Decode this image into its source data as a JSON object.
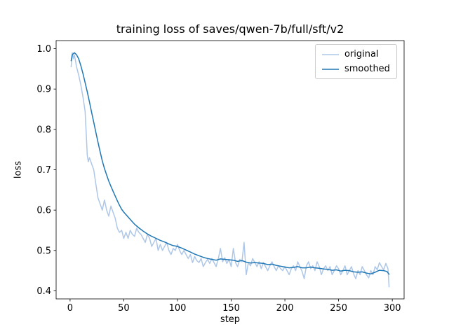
{
  "chart_data": {
    "type": "line",
    "title": "training loss of saves/qwen-7b/full/sft/v2",
    "xlabel": "step",
    "ylabel": "loss",
    "xlim": [
      -13,
      311
    ],
    "ylim": [
      0.38,
      1.02
    ],
    "xticks": [
      0,
      50,
      100,
      150,
      200,
      250,
      300
    ],
    "yticks": [
      0.4,
      0.5,
      0.6,
      0.7,
      0.8,
      0.9,
      1.0
    ],
    "grid": false,
    "legend_position": "upper right",
    "series": [
      {
        "name": "original",
        "color": "#aec7e8",
        "points": [
          [
            1,
            0.955
          ],
          [
            2,
            0.99
          ],
          [
            3,
            0.975
          ],
          [
            4,
            0.985
          ],
          [
            5,
            0.97
          ],
          [
            6,
            0.955
          ],
          [
            8,
            0.935
          ],
          [
            10,
            0.91
          ],
          [
            12,
            0.88
          ],
          [
            14,
            0.845
          ],
          [
            15,
            0.79
          ],
          [
            16,
            0.735
          ],
          [
            17,
            0.72
          ],
          [
            18,
            0.73
          ],
          [
            20,
            0.715
          ],
          [
            22,
            0.7
          ],
          [
            24,
            0.665
          ],
          [
            26,
            0.63
          ],
          [
            28,
            0.615
          ],
          [
            30,
            0.6
          ],
          [
            32,
            0.625
          ],
          [
            34,
            0.6
          ],
          [
            36,
            0.585
          ],
          [
            38,
            0.61
          ],
          [
            40,
            0.595
          ],
          [
            42,
            0.58
          ],
          [
            44,
            0.555
          ],
          [
            46,
            0.545
          ],
          [
            48,
            0.55
          ],
          [
            50,
            0.53
          ],
          [
            52,
            0.545
          ],
          [
            54,
            0.53
          ],
          [
            56,
            0.55
          ],
          [
            58,
            0.54
          ],
          [
            60,
            0.535
          ],
          [
            62,
            0.555
          ],
          [
            64,
            0.545
          ],
          [
            66,
            0.54
          ],
          [
            68,
            0.53
          ],
          [
            70,
            0.52
          ],
          [
            72,
            0.54
          ],
          [
            74,
            0.53
          ],
          [
            76,
            0.51
          ],
          [
            78,
            0.52
          ],
          [
            80,
            0.53
          ],
          [
            82,
            0.5
          ],
          [
            84,
            0.515
          ],
          [
            86,
            0.5
          ],
          [
            88,
            0.51
          ],
          [
            90,
            0.52
          ],
          [
            92,
            0.5
          ],
          [
            94,
            0.49
          ],
          [
            96,
            0.505
          ],
          [
            98,
            0.5
          ],
          [
            100,
            0.515
          ],
          [
            102,
            0.5
          ],
          [
            104,
            0.49
          ],
          [
            106,
            0.5
          ],
          [
            108,
            0.49
          ],
          [
            110,
            0.48
          ],
          [
            112,
            0.49
          ],
          [
            114,
            0.47
          ],
          [
            116,
            0.485
          ],
          [
            118,
            0.475
          ],
          [
            120,
            0.47
          ],
          [
            122,
            0.48
          ],
          [
            124,
            0.46
          ],
          [
            126,
            0.47
          ],
          [
            128,
            0.478
          ],
          [
            130,
            0.468
          ],
          [
            132,
            0.48
          ],
          [
            134,
            0.47
          ],
          [
            136,
            0.46
          ],
          [
            138,
            0.48
          ],
          [
            140,
            0.505
          ],
          [
            142,
            0.472
          ],
          [
            144,
            0.482
          ],
          [
            146,
            0.468
          ],
          [
            148,
            0.478
          ],
          [
            150,
            0.46
          ],
          [
            152,
            0.505
          ],
          [
            154,
            0.47
          ],
          [
            156,
            0.46
          ],
          [
            158,
            0.478
          ],
          [
            160,
            0.472
          ],
          [
            162,
            0.52
          ],
          [
            164,
            0.44
          ],
          [
            166,
            0.47
          ],
          [
            168,
            0.462
          ],
          [
            170,
            0.48
          ],
          [
            172,
            0.47
          ],
          [
            174,
            0.46
          ],
          [
            176,
            0.472
          ],
          [
            178,
            0.455
          ],
          [
            180,
            0.47
          ],
          [
            182,
            0.46
          ],
          [
            184,
            0.45
          ],
          [
            186,
            0.462
          ],
          [
            188,
            0.472
          ],
          [
            190,
            0.46
          ],
          [
            192,
            0.45
          ],
          [
            194,
            0.462
          ],
          [
            196,
            0.455
          ],
          [
            198,
            0.45
          ],
          [
            200,
            0.46
          ],
          [
            202,
            0.45
          ],
          [
            204,
            0.44
          ],
          [
            206,
            0.455
          ],
          [
            208,
            0.462
          ],
          [
            210,
            0.45
          ],
          [
            212,
            0.472
          ],
          [
            214,
            0.46
          ],
          [
            216,
            0.448
          ],
          [
            218,
            0.43
          ],
          [
            220,
            0.462
          ],
          [
            222,
            0.472
          ],
          [
            224,
            0.455
          ],
          [
            226,
            0.462
          ],
          [
            228,
            0.45
          ],
          [
            230,
            0.472
          ],
          [
            232,
            0.46
          ],
          [
            234,
            0.44
          ],
          [
            236,
            0.455
          ],
          [
            238,
            0.462
          ],
          [
            240,
            0.45
          ],
          [
            242,
            0.46
          ],
          [
            244,
            0.44
          ],
          [
            246,
            0.45
          ],
          [
            248,
            0.462
          ],
          [
            250,
            0.455
          ],
          [
            252,
            0.44
          ],
          [
            254,
            0.45
          ],
          [
            256,
            0.462
          ],
          [
            258,
            0.44
          ],
          [
            260,
            0.45
          ],
          [
            262,
            0.46
          ],
          [
            264,
            0.442
          ],
          [
            266,
            0.43
          ],
          [
            268,
            0.45
          ],
          [
            270,
            0.44
          ],
          [
            272,
            0.46
          ],
          [
            274,
            0.45
          ],
          [
            276,
            0.44
          ],
          [
            278,
            0.432
          ],
          [
            280,
            0.45
          ],
          [
            282,
            0.44
          ],
          [
            284,
            0.46
          ],
          [
            286,
            0.452
          ],
          [
            288,
            0.47
          ],
          [
            290,
            0.46
          ],
          [
            292,
            0.452
          ],
          [
            294,
            0.468
          ],
          [
            296,
            0.455
          ],
          [
            297,
            0.41
          ]
        ]
      },
      {
        "name": "smoothed",
        "color": "#1f77b4",
        "points": [
          [
            1,
            0.97
          ],
          [
            2,
            0.985
          ],
          [
            4,
            0.99
          ],
          [
            6,
            0.985
          ],
          [
            8,
            0.975
          ],
          [
            10,
            0.958
          ],
          [
            12,
            0.938
          ],
          [
            14,
            0.916
          ],
          [
            16,
            0.893
          ],
          [
            18,
            0.868
          ],
          [
            20,
            0.843
          ],
          [
            22,
            0.818
          ],
          [
            24,
            0.793
          ],
          [
            26,
            0.768
          ],
          [
            28,
            0.744
          ],
          [
            30,
            0.722
          ],
          [
            32,
            0.703
          ],
          [
            34,
            0.687
          ],
          [
            36,
            0.672
          ],
          [
            38,
            0.659
          ],
          [
            40,
            0.647
          ],
          [
            42,
            0.635
          ],
          [
            44,
            0.623
          ],
          [
            46,
            0.612
          ],
          [
            48,
            0.602
          ],
          [
            50,
            0.595
          ],
          [
            52,
            0.589
          ],
          [
            54,
            0.583
          ],
          [
            56,
            0.577
          ],
          [
            58,
            0.571
          ],
          [
            60,
            0.565
          ],
          [
            64,
            0.556
          ],
          [
            68,
            0.548
          ],
          [
            72,
            0.541
          ],
          [
            76,
            0.535
          ],
          [
            80,
            0.53
          ],
          [
            84,
            0.525
          ],
          [
            88,
            0.521
          ],
          [
            92,
            0.516
          ],
          [
            96,
            0.512
          ],
          [
            100,
            0.51
          ],
          [
            104,
            0.506
          ],
          [
            108,
            0.501
          ],
          [
            112,
            0.496
          ],
          [
            116,
            0.491
          ],
          [
            120,
            0.487
          ],
          [
            124,
            0.483
          ],
          [
            128,
            0.48
          ],
          [
            132,
            0.478
          ],
          [
            136,
            0.476
          ],
          [
            140,
            0.479
          ],
          [
            144,
            0.478
          ],
          [
            148,
            0.477
          ],
          [
            152,
            0.476
          ],
          [
            156,
            0.473
          ],
          [
            160,
            0.475
          ],
          [
            164,
            0.471
          ],
          [
            168,
            0.469
          ],
          [
            172,
            0.47
          ],
          [
            176,
            0.469
          ],
          [
            180,
            0.468
          ],
          [
            184,
            0.465
          ],
          [
            188,
            0.466
          ],
          [
            192,
            0.463
          ],
          [
            196,
            0.461
          ],
          [
            200,
            0.459
          ],
          [
            204,
            0.457
          ],
          [
            208,
            0.458
          ],
          [
            212,
            0.46
          ],
          [
            216,
            0.457
          ],
          [
            220,
            0.457
          ],
          [
            224,
            0.459
          ],
          [
            228,
            0.457
          ],
          [
            232,
            0.456
          ],
          [
            236,
            0.454
          ],
          [
            240,
            0.453
          ],
          [
            244,
            0.451
          ],
          [
            248,
            0.452
          ],
          [
            252,
            0.449
          ],
          [
            256,
            0.451
          ],
          [
            260,
            0.45
          ],
          [
            264,
            0.447
          ],
          [
            268,
            0.446
          ],
          [
            272,
            0.447
          ],
          [
            276,
            0.444
          ],
          [
            280,
            0.442
          ],
          [
            284,
            0.446
          ],
          [
            288,
            0.451
          ],
          [
            292,
            0.45
          ],
          [
            295,
            0.448
          ],
          [
            297,
            0.441
          ]
        ]
      }
    ]
  }
}
